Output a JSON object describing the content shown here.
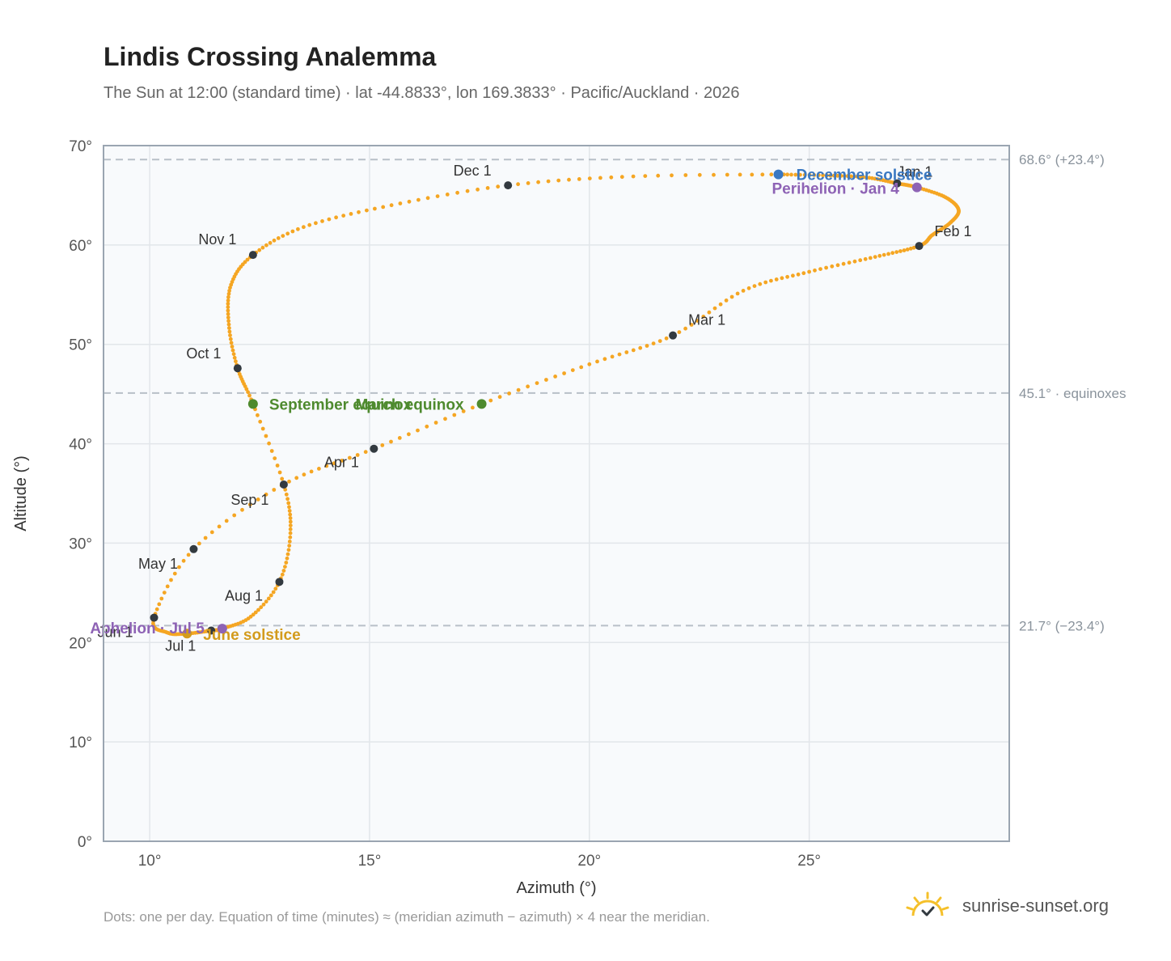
{
  "header": {
    "title": "Lindis Crossing Analemma",
    "subtitle": "The Sun at 12:00 (standard time) · lat -44.8833°, lon 169.3833° · Pacific/Auckland · 2026"
  },
  "footer": {
    "note": "Dots: one per day. Equation of time (minutes) ≈ (meridian azimuth − azimuth) × 4 near the meridian.",
    "brand": "sunrise-sunset.org"
  },
  "colors": {
    "trace": "#f5a623",
    "month_dot": "#333a40",
    "equinox": "#4e8a2e",
    "december_solstice": "#3a78c2",
    "june_solstice": "#d39b1c",
    "apsis": "#8e63b5",
    "grid": "#e2e6ea",
    "frame": "#9aa5b1",
    "plot_bg": "#f8fafc",
    "reference": "#b8c0c8",
    "brand_sun": "#f5c02a"
  },
  "chart_data": {
    "type": "scatter",
    "xlabel": "Azimuth (°)",
    "ylabel": "Altitude (°)",
    "xlim": [
      8.95,
      29.55
    ],
    "ylim": [
      0,
      70
    ],
    "xticks": [
      10,
      15,
      20,
      25
    ],
    "xtick_labels": [
      "10°",
      "15°",
      "20°",
      "25°"
    ],
    "yticks": [
      0,
      10,
      20,
      30,
      40,
      50,
      60,
      70
    ],
    "ytick_labels": [
      "0°",
      "10°",
      "20°",
      "30°",
      "40°",
      "50°",
      "60°",
      "70°"
    ],
    "grid": true,
    "reference_lines": [
      {
        "y": 68.6,
        "label": "68.6° (+23.4°)"
      },
      {
        "y": 45.1,
        "label": "45.1° · equinoxes"
      },
      {
        "y": 21.7,
        "label": "21.7° (−23.4°)"
      }
    ],
    "month_markers": [
      {
        "label": "Jan 1",
        "x": 27.0,
        "y": 66.2
      },
      {
        "label": "Feb 1",
        "x": 27.5,
        "y": 59.9
      },
      {
        "label": "Mar 1",
        "x": 21.9,
        "y": 50.9
      },
      {
        "label": "Apr 1",
        "x": 15.1,
        "y": 39.5
      },
      {
        "label": "May 1",
        "x": 11.0,
        "y": 29.4
      },
      {
        "label": "Jun 1",
        "x": 10.1,
        "y": 22.5
      },
      {
        "label": "Jul 1",
        "x": 11.4,
        "y": 21.2
      },
      {
        "label": "Aug 1",
        "x": 12.95,
        "y": 26.1
      },
      {
        "label": "Sep 1",
        "x": 13.05,
        "y": 35.9
      },
      {
        "label": "Oct 1",
        "x": 12.0,
        "y": 47.6
      },
      {
        "label": "Nov 1",
        "x": 12.35,
        "y": 59.0
      },
      {
        "label": "Dec 1",
        "x": 18.15,
        "y": 66.0
      }
    ],
    "events": [
      {
        "label": "December solstice",
        "x": 24.3,
        "y": 67.1
      },
      {
        "label": "Perihelion · Jan 4",
        "x": 27.45,
        "y": 65.8
      },
      {
        "label": "March equinox",
        "x": 17.55,
        "y": 44.0
      },
      {
        "label": "September equinox",
        "x": 12.35,
        "y": 44.0
      },
      {
        "label": "June solstice",
        "x": 10.85,
        "y": 20.9
      },
      {
        "label": "Aphelion · Jul 5",
        "x": 11.65,
        "y": 21.4
      }
    ],
    "trace": [
      [
        24.3,
        67.1
      ],
      [
        25.4,
        67.0
      ],
      [
        26.3,
        66.8
      ],
      [
        27.0,
        66.2
      ],
      [
        27.45,
        65.8
      ],
      [
        28.1,
        64.8
      ],
      [
        28.4,
        63.5
      ],
      [
        28.2,
        62.2
      ],
      [
        27.8,
        61.0
      ],
      [
        27.5,
        59.9
      ],
      [
        26.5,
        58.8
      ],
      [
        25.0,
        57.3
      ],
      [
        23.5,
        55.4
      ],
      [
        21.9,
        50.9
      ],
      [
        20.0,
        48.0
      ],
      [
        17.55,
        44.0
      ],
      [
        15.1,
        39.5
      ],
      [
        13.0,
        35.8
      ],
      [
        11.0,
        29.4
      ],
      [
        10.1,
        22.5
      ],
      [
        10.4,
        21.0
      ],
      [
        10.85,
        20.9
      ],
      [
        11.4,
        21.2
      ],
      [
        11.65,
        21.4
      ],
      [
        12.3,
        22.6
      ],
      [
        12.95,
        26.1
      ],
      [
        13.2,
        31.0
      ],
      [
        13.05,
        35.9
      ],
      [
        12.35,
        44.0
      ],
      [
        12.0,
        47.6
      ],
      [
        11.8,
        52.0
      ],
      [
        11.85,
        56.0
      ],
      [
        12.35,
        59.0
      ],
      [
        13.5,
        61.8
      ],
      [
        15.5,
        64.0
      ],
      [
        18.15,
        66.0
      ],
      [
        21.0,
        66.9
      ],
      [
        24.3,
        67.1
      ]
    ]
  }
}
